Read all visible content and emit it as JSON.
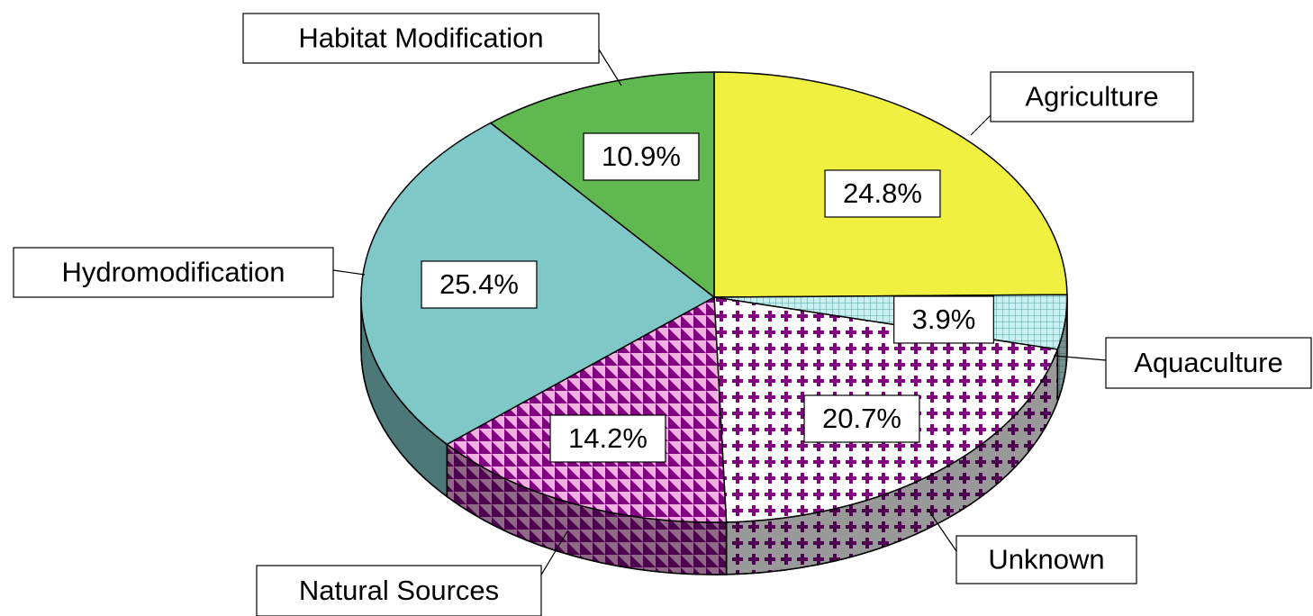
{
  "chart_data": {
    "type": "pie",
    "categories": [
      "Agriculture",
      "Aquaculture",
      "Unknown",
      "Natural Sources",
      "Hydromodification",
      "Habitat Modification"
    ],
    "values": [
      24.8,
      3.9,
      20.7,
      14.2,
      25.4,
      10.9
    ],
    "value_labels": [
      "24.8%",
      "3.9%",
      "20.7%",
      "14.2%",
      "25.4%",
      "10.9%"
    ],
    "colors": [
      "#f0f040",
      "#c8f0f0",
      "#ffffff",
      "#f0b0e0",
      "#80c8c8",
      "#60b850"
    ],
    "patterns": [
      "none",
      "grid",
      "cross",
      "triangle",
      "none",
      "none"
    ],
    "three_d": true
  }
}
